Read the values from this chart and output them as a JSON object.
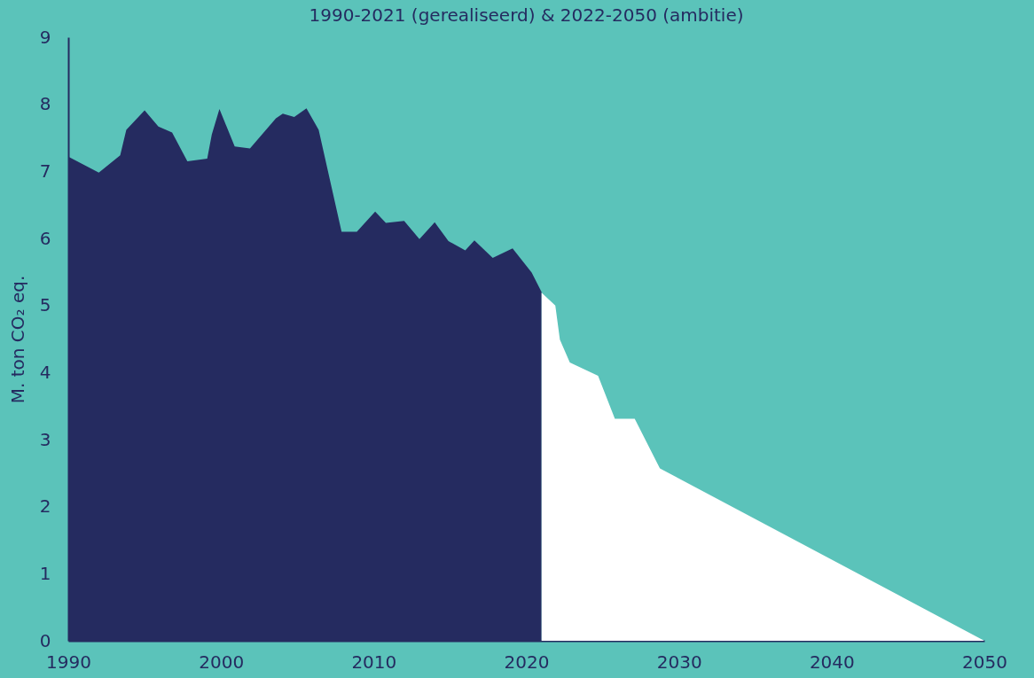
{
  "chart_data": {
    "type": "area",
    "title": "1990-2021 (gerealiseerd) & 2022-2050 (ambitie)",
    "ylabel": "M. ton CO₂ eq.",
    "xlim": [
      1990,
      2050
    ],
    "ylim": [
      0,
      9
    ],
    "xticks": [
      1990,
      2000,
      2010,
      2020,
      2030,
      2040,
      2050
    ],
    "yticks": [
      0,
      1,
      2,
      3,
      4,
      5,
      6,
      7,
      8,
      9
    ],
    "grid": false,
    "legend": false,
    "series": [
      {
        "color": "#252b60",
        "x": [
          1990,
          1992.0,
          1993.4,
          1993.8,
          1995.0,
          1995.9,
          1996.8,
          1997.8,
          1999.1,
          1999.4,
          1999.9,
          2000.9,
          2001.9,
          2003.6,
          2004.05,
          2004.8,
          2005.6,
          2006.4,
          2007.9,
          2008.9,
          2010.1,
          2010.8,
          2012.0,
          2013.0,
          2014.0,
          2014.9,
          2016.0,
          2016.6,
          2017.8,
          2019.1,
          2020.35,
          2021.0
        ],
        "values": [
          7.22,
          6.98,
          7.24,
          7.62,
          7.91,
          7.67,
          7.58,
          7.15,
          7.19,
          7.55,
          7.93,
          7.37,
          7.34,
          7.79,
          7.86,
          7.81,
          7.94,
          7.62,
          6.1,
          6.1,
          6.4,
          6.23,
          6.26,
          5.99,
          6.24,
          5.96,
          5.82,
          5.97,
          5.71,
          5.85,
          5.49,
          5.2
        ]
      },
      {
        "color": "#ffffff",
        "x": [
          2021.0,
          2021.9,
          2022.2,
          2022.85,
          2024.7,
          2025.8,
          2027.1,
          2028.75,
          2050
        ],
        "values": [
          5.19,
          5.0,
          4.49,
          4.15,
          3.95,
          3.31,
          3.31,
          2.57,
          0
        ]
      }
    ]
  }
}
